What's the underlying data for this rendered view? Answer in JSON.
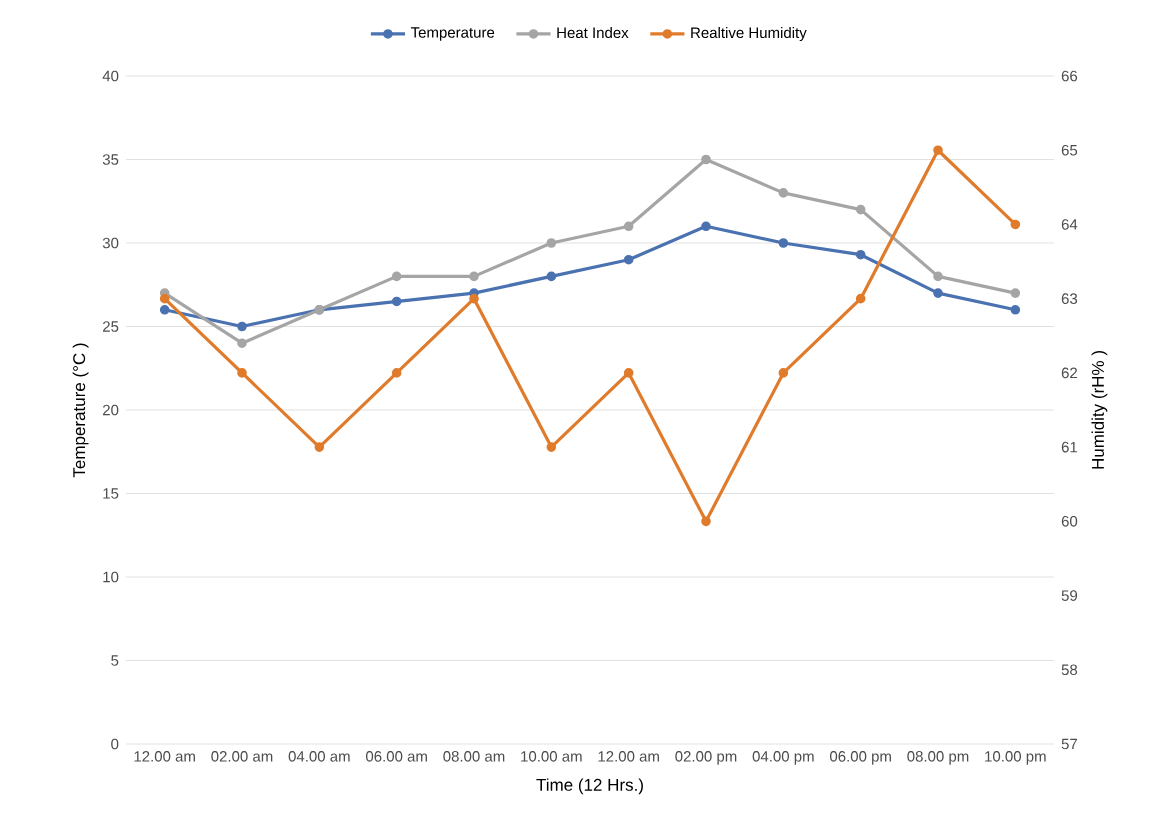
{
  "chart_data": {
    "type": "line",
    "xlabel": "Time (12 Hrs.)",
    "ylabel": "Temperature (°C )",
    "y2label": "Humidity (rH% )",
    "categories": [
      "12.00 am",
      "02.00 am",
      "04.00 am",
      "06.00 am",
      "08.00 am",
      "10.00 am",
      "12.00 am",
      "02.00 pm",
      "04.00 pm",
      "06.00 pm",
      "08.00 pm",
      "10.00 pm"
    ],
    "series": [
      {
        "name": "Temperature",
        "color": "#4a72b0",
        "values": [
          26,
          25,
          26,
          26.5,
          27,
          28,
          29,
          31,
          30,
          29.3,
          27,
          26
        ]
      },
      {
        "name": "Heat Index",
        "color": "#a5a5a5",
        "values": [
          27,
          24,
          26,
          28,
          28,
          30,
          31,
          35,
          33,
          32,
          28,
          27
        ]
      },
      {
        "name": "Realtive Humidity",
        "color": "#e07b2c",
        "axis": "y2",
        "values": [
          63,
          62,
          61,
          62,
          63,
          61,
          62,
          60,
          62,
          63,
          65,
          64
        ]
      }
    ],
    "ylim": [
      0,
      40
    ],
    "yticks": [
      0,
      5,
      10,
      15,
      20,
      25,
      30,
      35,
      40
    ],
    "y2lim": [
      57,
      66
    ],
    "y2ticks": [
      57,
      58,
      59,
      60,
      61,
      62,
      63,
      64,
      65,
      66
    ],
    "grid": "y",
    "legend": "top",
    "marker": "circle",
    "line_style": "solid"
  }
}
